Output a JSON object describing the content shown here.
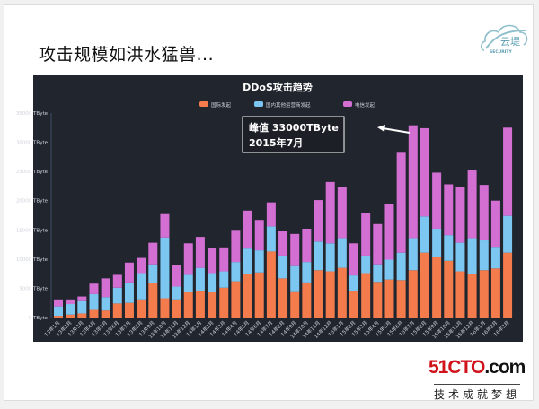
{
  "slide": {
    "title": "攻击规模如洪水猛兽...",
    "logo_top": {
      "text": "云堤",
      "subtext": "SECURITY"
    },
    "logo_bottom": {
      "main_red": "51CTO",
      "main_black": ".com",
      "slogan": "技术成就梦想"
    }
  },
  "chart_data": {
    "type": "bar",
    "stacked": true,
    "title": "DDoS攻击趋势",
    "xlabel": "",
    "ylabel": "",
    "ylim": [
      0,
      35000
    ],
    "y_ticks": [
      "0 TByte",
      "5000 TByte",
      "10000 TByte",
      "15000 TByte",
      "20000 TByte",
      "25000 TByte",
      "30000 TByte",
      "35000 TByte"
    ],
    "grid": false,
    "legend_position": "top-center",
    "categories": [
      "13年1月",
      "13年2月",
      "13年3月",
      "13年4月",
      "13年5月",
      "13年6月",
      "13年7月",
      "13年8月",
      "13年9月",
      "13年10月",
      "13年11月",
      "13年12月",
      "14年1月",
      "14年2月",
      "14年3月",
      "14年4月",
      "14年5月",
      "14年6月",
      "14年7月",
      "14年8月",
      "14年9月",
      "14年10月",
      "14年11月",
      "14年12月",
      "15年1月",
      "15年2月",
      "15年3月",
      "15年4月",
      "15年5月",
      "15年6月",
      "15年7月",
      "15年8月",
      "15年9月",
      "15年10月",
      "15年11月",
      "15年12月",
      "16年1月",
      "16年2月",
      "16年3月"
    ],
    "series": [
      {
        "name": "国际发起",
        "color": "#f47c4c",
        "values": [
          300,
          500,
          700,
          1300,
          1200,
          2400,
          2500,
          3100,
          5900,
          3300,
          3100,
          4400,
          4600,
          4300,
          5100,
          6200,
          7400,
          7700,
          11300,
          6700,
          4500,
          6000,
          8100,
          7900,
          8500,
          4600,
          7600,
          6100,
          6500,
          6400,
          8100,
          11100,
          10400,
          9700,
          7900,
          7400,
          8100,
          8400,
          11100
        ]
      },
      {
        "name": "国内其他运营商发起",
        "color": "#7cc6f2",
        "values": [
          1600,
          1800,
          2100,
          2700,
          2300,
          2700,
          3500,
          4500,
          3200,
          10400,
          2200,
          2900,
          3900,
          3300,
          2800,
          3300,
          4400,
          3800,
          4300,
          3900,
          4300,
          3500,
          4900,
          4800,
          5100,
          2600,
          3000,
          3000,
          3400,
          4700,
          5500,
          6200,
          4800,
          4400,
          4900,
          6200,
          5100,
          3700,
          6300
        ]
      },
      {
        "name": "电信发起",
        "color": "#d36ed3",
        "values": [
          1200,
          800,
          800,
          1800,
          3200,
          2200,
          3400,
          2600,
          3700,
          4000,
          3700,
          5400,
          5300,
          4300,
          4100,
          5500,
          6500,
          5200,
          4100,
          4200,
          5500,
          5700,
          7100,
          10500,
          8800,
          5500,
          7300,
          6900,
          9600,
          17100,
          19300,
          15100,
          9600,
          8700,
          9500,
          11700,
          9500,
          7900,
          15100
        ]
      }
    ],
    "annotation": {
      "line1": "峰值 33000TByte",
      "line2": "2015年7月",
      "points_to": "15年7月"
    }
  }
}
